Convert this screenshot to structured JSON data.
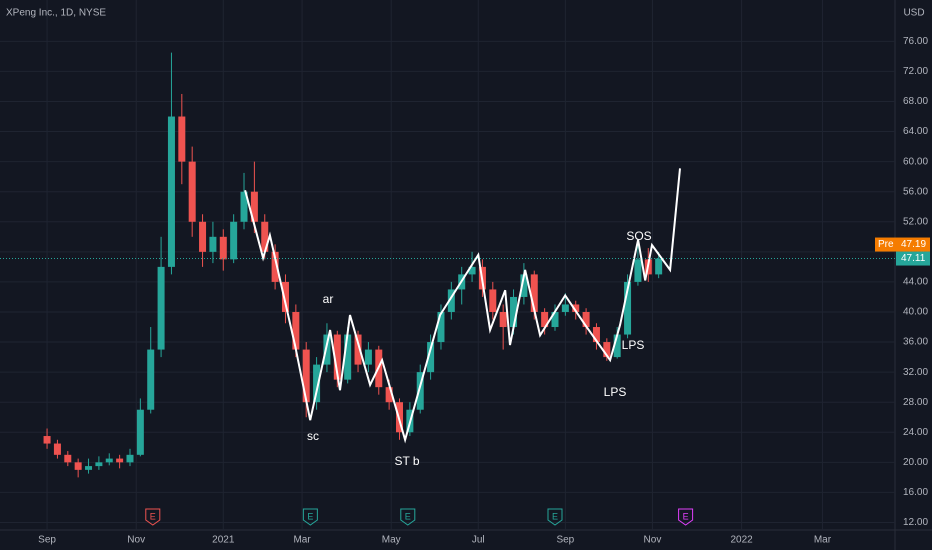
{
  "chart_data": {
    "type": "candlestick",
    "title": "XPeng Inc., 1D, NYSE",
    "currency": "USD",
    "x": [
      0,
      5,
      10,
      15,
      20,
      25,
      30,
      35,
      40,
      45,
      50,
      55,
      60,
      65,
      70,
      75,
      80,
      85,
      90,
      95,
      100,
      105,
      110,
      115,
      120,
      125,
      130,
      135,
      140,
      145,
      150,
      155,
      160,
      165,
      170,
      175,
      180,
      185,
      190,
      195,
      200,
      205,
      210,
      215,
      220,
      225,
      230,
      235,
      240,
      245,
      250,
      255,
      260,
      265,
      270,
      275,
      280,
      285,
      290,
      295
    ],
    "open": [
      23.5,
      22.5,
      21,
      20,
      19,
      19.5,
      20,
      20.5,
      20,
      21,
      27,
      35,
      46,
      66,
      60,
      52,
      48,
      50,
      47,
      52,
      56,
      52,
      48,
      44,
      40,
      35,
      28,
      33,
      37,
      31,
      37,
      33,
      35,
      30,
      28,
      24,
      27,
      32,
      36,
      40,
      43,
      45,
      46,
      43,
      40,
      38,
      42,
      45,
      40,
      38,
      40,
      41,
      40,
      38,
      36,
      34,
      37,
      44,
      47,
      45
    ],
    "high": [
      24.5,
      23,
      21.5,
      20.5,
      20.5,
      20.8,
      21.2,
      21,
      21.8,
      28.5,
      38,
      50,
      74.5,
      69,
      62,
      53,
      52,
      51,
      53,
      58.5,
      60,
      53,
      49,
      45,
      41,
      36,
      34,
      38.5,
      37.5,
      38,
      37.5,
      36,
      35.5,
      31,
      28.5,
      28,
      33,
      37,
      41,
      44,
      46,
      48,
      47,
      44,
      41,
      43,
      46.5,
      45.5,
      40.5,
      41,
      42.5,
      41.5,
      40.5,
      38.5,
      36.5,
      38,
      45,
      49,
      48.5,
      48
    ],
    "low": [
      21.8,
      20.5,
      19.5,
      18,
      18.5,
      19,
      19.6,
      19.2,
      19.5,
      20.8,
      26.5,
      34,
      45,
      57,
      50,
      46,
      46.5,
      45.5,
      46.5,
      51,
      50.5,
      47,
      43,
      38.5,
      34,
      26,
      27,
      32,
      30,
      30.5,
      32,
      32,
      29,
      27,
      23,
      23.5,
      26.5,
      31,
      35,
      39,
      41,
      44,
      42,
      39,
      35,
      37,
      41,
      39,
      37,
      37.5,
      39.5,
      39,
      37,
      35,
      33.5,
      33.8,
      36.5,
      43.5,
      44,
      44.5
    ],
    "close": [
      22.5,
      21,
      20,
      19,
      19.5,
      20,
      20.5,
      20,
      21,
      27,
      35,
      46,
      66,
      60,
      52,
      48,
      50,
      47,
      52,
      56,
      52,
      48,
      44,
      40,
      35,
      28,
      33,
      37,
      31,
      37,
      33,
      35,
      30,
      28,
      24,
      27,
      32,
      36,
      40,
      43,
      45,
      46,
      43,
      40,
      38,
      42,
      45,
      40,
      38,
      40,
      41,
      40,
      38,
      36,
      34,
      37,
      44,
      47,
      45,
      47.11
    ],
    "up_color": "#26a69a",
    "down_color": "#ef5350",
    "xlim": [
      -22.7,
      409
    ],
    "ylim": [
      11,
      81.5
    ],
    "xticks": [
      {
        "value": 0,
        "label": "Sep"
      },
      {
        "value": 43,
        "label": "Nov"
      },
      {
        "value": 85,
        "label": "2021"
      },
      {
        "value": 123,
        "label": "Mar"
      },
      {
        "value": 166,
        "label": "May"
      },
      {
        "value": 208,
        "label": "Jul"
      },
      {
        "value": 250,
        "label": "Sep"
      },
      {
        "value": 292,
        "label": "Nov"
      },
      {
        "value": 335,
        "label": "2022"
      },
      {
        "value": 374,
        "label": "Mar"
      }
    ],
    "yticks": [
      {
        "value": 12,
        "label": "12.00"
      },
      {
        "value": 16,
        "label": "16.00"
      },
      {
        "value": 20,
        "label": "20.00"
      },
      {
        "value": 24,
        "label": "24.00"
      },
      {
        "value": 28,
        "label": "28.00"
      },
      {
        "value": 32,
        "label": "32.00"
      },
      {
        "value": 36,
        "label": "36.00"
      },
      {
        "value": 40,
        "label": "40.00"
      },
      {
        "value": 44,
        "label": "44.00"
      },
      {
        "value": 48,
        "label": "48.00"
      },
      {
        "value": 52,
        "label": "52.00"
      },
      {
        "value": 56,
        "label": "56.00"
      },
      {
        "value": 60,
        "label": "60.00"
      },
      {
        "value": 64,
        "label": "64.00"
      },
      {
        "value": 68,
        "label": "68.00"
      },
      {
        "value": 72,
        "label": "72.00"
      },
      {
        "value": 76,
        "label": "76.00"
      }
    ],
    "grid": true,
    "last_price": 47.11,
    "pre_market": {
      "label": "Pre",
      "value": 47.19
    },
    "overlay": {
      "color": "#ffffff",
      "x": [
        95.5,
        104.2,
        107.5,
        119.6,
        126.9,
        136.5,
        141.3,
        146.1,
        155.8,
        161.6,
        172.7,
        189.6,
        208,
        213.7,
        221,
        223.3,
        230.6,
        237.8,
        249.9,
        259.5,
        271.6,
        276.4,
        285.1,
        288.5,
        291.8,
        300.5,
        305.3
      ],
      "y": [
        56.2,
        47.2,
        50.2,
        35.6,
        25.6,
        37.6,
        29.6,
        39.6,
        30.3,
        33.6,
        23,
        39.6,
        47.6,
        37.6,
        42.9,
        35.6,
        45.6,
        36.9,
        42.2,
        38.3,
        33.6,
        38.3,
        49.6,
        44.2,
        48.9,
        45.6,
        59.1
      ]
    },
    "annotations": [
      "ar",
      "sc",
      "ST b",
      "SOS",
      "LPS",
      "LPS"
    ],
    "events": [
      {
        "x": 51,
        "label": "E",
        "color": "#ef5350"
      },
      {
        "x": 127,
        "label": "E",
        "color": "#26a69a"
      },
      {
        "x": 174,
        "label": "E",
        "color": "#26a69a"
      },
      {
        "x": 245,
        "label": "E",
        "color": "#26a69a"
      },
      {
        "x": 308,
        "label": "E",
        "color": "#e040fb"
      }
    ]
  }
}
